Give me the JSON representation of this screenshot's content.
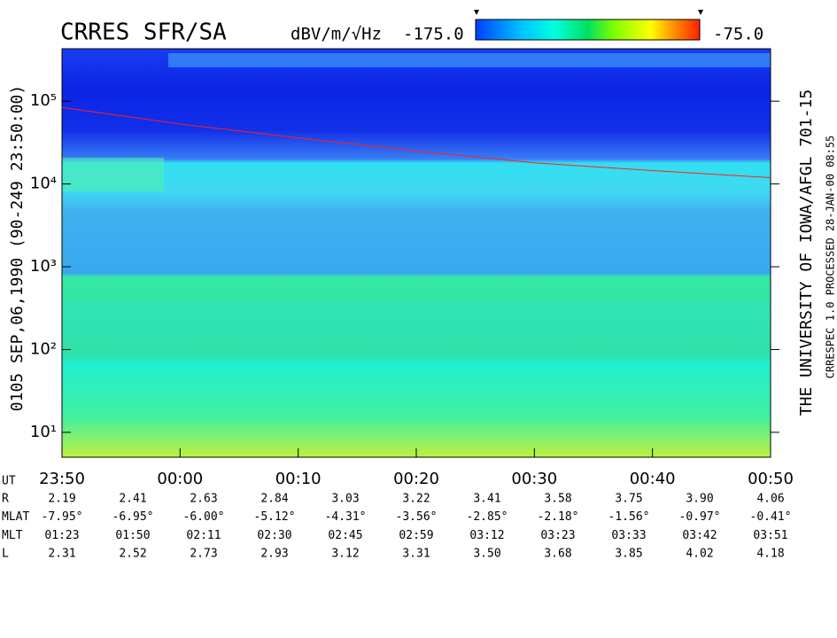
{
  "chart_data": {
    "type": "spectrogram",
    "title": "CRRES SFR/SA",
    "colorbar": {
      "unit": "dBV/m/√Hz",
      "min": {
        "value": -175,
        "label": "-175.0"
      },
      "max": {
        "value": -75,
        "label": "-75.0"
      }
    },
    "left_label": "0105  SEP,06,1990  (90-249 23:50:00)",
    "right_label": "THE UNIVERSITY OF IOWA/AFGL 701-15",
    "processed_label": "CRRESPEC 1.0   PROCESSED 28-JAN-00  08:55",
    "log_y": true,
    "ylim": [
      5,
      430000
    ],
    "yticks": [
      {
        "value": 10,
        "label": "10¹"
      },
      {
        "value": 100,
        "label": "10²"
      },
      {
        "value": 1000,
        "label": "10³"
      },
      {
        "value": 10000,
        "label": "10⁴"
      },
      {
        "value": 100000,
        "label": "10⁵"
      }
    ],
    "xlim": [
      0,
      60
    ],
    "xticks": [
      {
        "value": 0,
        "label": "23:50"
      },
      {
        "value": 10,
        "label": "00:00"
      },
      {
        "value": 20,
        "label": "00:10"
      },
      {
        "value": 30,
        "label": "00:20"
      },
      {
        "value": 40,
        "label": "00:30"
      },
      {
        "value": 50,
        "label": "00:40"
      },
      {
        "value": 60,
        "label": "00:50"
      }
    ],
    "x_axis_label": "UT",
    "series": [
      {
        "color": "#ff2020",
        "x": [
          0,
          10,
          20,
          30,
          40,
          50,
          60
        ],
        "values": [
          84000,
          53000,
          36000,
          25000,
          18000,
          14500,
          11900
        ]
      }
    ],
    "ephemeris": [
      {
        "name": "R",
        "values": [
          "2.19",
          "2.41",
          "2.63",
          "2.84",
          "3.03",
          "3.22",
          "3.41",
          "3.58",
          "3.75",
          "3.90",
          "4.06"
        ]
      },
      {
        "name": "MLAT",
        "values": [
          "-7.95°",
          "-6.95°",
          "-6.00°",
          "-5.12°",
          "-4.31°",
          "-3.56°",
          "-2.85°",
          "-2.18°",
          "-1.56°",
          "-0.97°",
          "-0.41°"
        ]
      },
      {
        "name": "MLT",
        "values": [
          "01:23",
          "01:50",
          "02:11",
          "02:30",
          "02:45",
          "02:59",
          "03:12",
          "03:23",
          "03:33",
          "03:42",
          "03:51"
        ]
      },
      {
        "name": "L",
        "values": [
          "2.31",
          "2.52",
          "2.73",
          "2.93",
          "3.12",
          "3.31",
          "3.50",
          "3.68",
          "3.85",
          "4.02",
          "4.18"
        ]
      }
    ]
  }
}
